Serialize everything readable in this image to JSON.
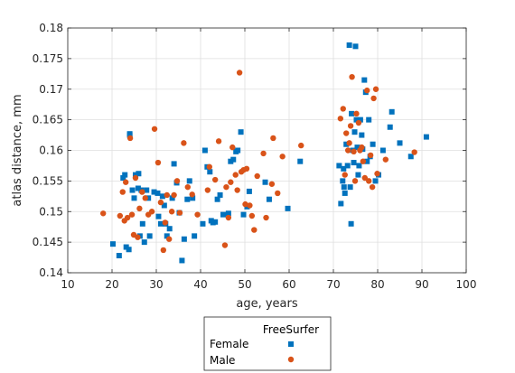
{
  "chart_data": {
    "type": "scatter",
    "xlabel": "age, years",
    "ylabel": "atlas distance, mm",
    "xlim": [
      10,
      100
    ],
    "ylim": [
      0.14,
      0.18
    ],
    "xticks": [
      "10",
      "20",
      "30",
      "40",
      "50",
      "60",
      "70",
      "80",
      "90",
      "100"
    ],
    "yticks": [
      "0.14",
      "0.145",
      "0.15",
      "0.155",
      "0.16",
      "0.165",
      "0.17",
      "0.175",
      "0.18"
    ],
    "grid": true,
    "legend": {
      "title": "FreeSurfer",
      "position": "bottom-center-outside",
      "entries": [
        "Female",
        "Male"
      ]
    },
    "series": [
      {
        "name": "Female",
        "color": "#0072bd",
        "marker": "square",
        "points": [
          [
            20.2,
            0.1447
          ],
          [
            21.6,
            0.1428
          ],
          [
            22.5,
            0.1555
          ],
          [
            22.9,
            0.156
          ],
          [
            23.2,
            0.1442
          ],
          [
            23.8,
            0.1438
          ],
          [
            24.0,
            0.1627
          ],
          [
            24.0,
            0.1625
          ],
          [
            24.6,
            0.1535
          ],
          [
            25.0,
            0.1522
          ],
          [
            25.3,
            0.156
          ],
          [
            25.9,
            0.1538
          ],
          [
            26.0,
            0.1562
          ],
          [
            26.3,
            0.146
          ],
          [
            26.6,
            0.1535
          ],
          [
            26.9,
            0.148
          ],
          [
            27.3,
            0.145
          ],
          [
            27.8,
            0.1535
          ],
          [
            28.2,
            0.1522
          ],
          [
            28.5,
            0.146
          ],
          [
            29.5,
            0.1532
          ],
          [
            30.3,
            0.153
          ],
          [
            30.5,
            0.1492
          ],
          [
            31.0,
            0.148
          ],
          [
            31.4,
            0.1525
          ],
          [
            31.8,
            0.151
          ],
          [
            32.1,
            0.148
          ],
          [
            32.4,
            0.146
          ],
          [
            33.0,
            0.1472
          ],
          [
            33.6,
            0.1522
          ],
          [
            34.0,
            0.1578
          ],
          [
            34.6,
            0.1547
          ],
          [
            35.2,
            0.1498
          ],
          [
            35.8,
            0.142
          ],
          [
            36.3,
            0.1455
          ],
          [
            37.0,
            0.152
          ],
          [
            37.5,
            0.155
          ],
          [
            38.2,
            0.1522
          ],
          [
            38.6,
            0.146
          ],
          [
            40.5,
            0.148
          ],
          [
            41.0,
            0.16
          ],
          [
            41.5,
            0.1573
          ],
          [
            42.1,
            0.1565
          ],
          [
            42.4,
            0.1485
          ],
          [
            42.8,
            0.1482
          ],
          [
            43.3,
            0.1483
          ],
          [
            43.8,
            0.152
          ],
          [
            44.4,
            0.1527
          ],
          [
            45.1,
            0.1495
          ],
          [
            46.3,
            0.1497
          ],
          [
            46.8,
            0.1582
          ],
          [
            47.4,
            0.1585
          ],
          [
            48.0,
            0.1598
          ],
          [
            48.4,
            0.16
          ],
          [
            49.1,
            0.163
          ],
          [
            49.7,
            0.1495
          ],
          [
            50.5,
            0.1508
          ],
          [
            51.0,
            0.1533
          ],
          [
            54.6,
            0.1548
          ],
          [
            55.5,
            0.152
          ],
          [
            59.7,
            0.1505
          ],
          [
            62.5,
            0.1582
          ],
          [
            71.3,
            0.1575
          ],
          [
            71.7,
            0.1513
          ],
          [
            72.1,
            0.155
          ],
          [
            72.3,
            0.157
          ],
          [
            72.4,
            0.154
          ],
          [
            72.6,
            0.153
          ],
          [
            72.9,
            0.161
          ],
          [
            73.2,
            0.1575
          ],
          [
            73.6,
            0.1772
          ],
          [
            73.8,
            0.154
          ],
          [
            74.0,
            0.148
          ],
          [
            74.1,
            0.166
          ],
          [
            74.4,
            0.16
          ],
          [
            74.6,
            0.158
          ],
          [
            74.8,
            0.163
          ],
          [
            75.0,
            0.177
          ],
          [
            75.2,
            0.165
          ],
          [
            75.4,
            0.1605
          ],
          [
            75.6,
            0.156
          ],
          [
            75.8,
            0.1575
          ],
          [
            76.1,
            0.165
          ],
          [
            76.4,
            0.1625
          ],
          [
            76.6,
            0.1602
          ],
          [
            77.0,
            0.1715
          ],
          [
            77.3,
            0.1695
          ],
          [
            77.6,
            0.1582
          ],
          [
            78.0,
            0.165
          ],
          [
            78.3,
            0.159
          ],
          [
            78.9,
            0.161
          ],
          [
            79.5,
            0.155
          ],
          [
            80.2,
            0.156
          ],
          [
            81.2,
            0.16
          ],
          [
            82.8,
            0.1638
          ],
          [
            83.2,
            0.1663
          ],
          [
            85.0,
            0.1612
          ],
          [
            87.5,
            0.159
          ],
          [
            91.0,
            0.1622
          ]
        ]
      },
      {
        "name": "Male",
        "color": "#d95319",
        "marker": "circle",
        "points": [
          [
            18.0,
            0.1497
          ],
          [
            21.8,
            0.1493
          ],
          [
            22.4,
            0.1532
          ],
          [
            22.8,
            0.1485
          ],
          [
            23.1,
            0.1548
          ],
          [
            23.5,
            0.149
          ],
          [
            24.1,
            0.162
          ],
          [
            24.5,
            0.1495
          ],
          [
            24.9,
            0.1462
          ],
          [
            25.3,
            0.1555
          ],
          [
            25.8,
            0.1458
          ],
          [
            26.2,
            0.1505
          ],
          [
            26.8,
            0.1532
          ],
          [
            27.5,
            0.1522
          ],
          [
            28.2,
            0.1495
          ],
          [
            29.0,
            0.15
          ],
          [
            29.6,
            0.1635
          ],
          [
            30.4,
            0.158
          ],
          [
            31.0,
            0.1515
          ],
          [
            31.6,
            0.1437
          ],
          [
            32.0,
            0.1482
          ],
          [
            32.4,
            0.1527
          ],
          [
            32.9,
            0.1455
          ],
          [
            33.5,
            0.15
          ],
          [
            34.0,
            0.1527
          ],
          [
            34.7,
            0.155
          ],
          [
            35.3,
            0.1498
          ],
          [
            36.2,
            0.1612
          ],
          [
            37.1,
            0.154
          ],
          [
            38.1,
            0.1528
          ],
          [
            39.3,
            0.1495
          ],
          [
            41.6,
            0.1535
          ],
          [
            42.0,
            0.1573
          ],
          [
            43.3,
            0.1552
          ],
          [
            44.1,
            0.1615
          ],
          [
            45.5,
            0.1445
          ],
          [
            45.8,
            0.154
          ],
          [
            46.3,
            0.149
          ],
          [
            46.8,
            0.1548
          ],
          [
            47.2,
            0.1605
          ],
          [
            47.9,
            0.156
          ],
          [
            48.3,
            0.1535
          ],
          [
            48.8,
            0.1727
          ],
          [
            49.2,
            0.1565
          ],
          [
            49.7,
            0.1568
          ],
          [
            50.1,
            0.1512
          ],
          [
            50.4,
            0.157
          ],
          [
            51.1,
            0.151
          ],
          [
            51.6,
            0.1493
          ],
          [
            52.1,
            0.147
          ],
          [
            52.8,
            0.1558
          ],
          [
            54.2,
            0.1595
          ],
          [
            54.8,
            0.149
          ],
          [
            56.1,
            0.1545
          ],
          [
            56.4,
            0.162
          ],
          [
            57.4,
            0.153
          ],
          [
            58.5,
            0.159
          ],
          [
            62.7,
            0.1608
          ],
          [
            71.6,
            0.1652
          ],
          [
            72.2,
            0.1668
          ],
          [
            72.6,
            0.156
          ],
          [
            72.9,
            0.1628
          ],
          [
            73.3,
            0.16
          ],
          [
            73.6,
            0.1612
          ],
          [
            73.9,
            0.164
          ],
          [
            74.2,
            0.172
          ],
          [
            74.6,
            0.1598
          ],
          [
            74.9,
            0.155
          ],
          [
            75.2,
            0.166
          ],
          [
            75.7,
            0.1645
          ],
          [
            76.0,
            0.16
          ],
          [
            76.4,
            0.1605
          ],
          [
            76.7,
            0.1582
          ],
          [
            77.1,
            0.1555
          ],
          [
            77.6,
            0.1698
          ],
          [
            78.0,
            0.155
          ],
          [
            78.4,
            0.1592
          ],
          [
            78.8,
            0.154
          ],
          [
            79.1,
            0.1685
          ],
          [
            79.6,
            0.17
          ],
          [
            79.9,
            0.1562
          ],
          [
            81.8,
            0.1585
          ],
          [
            88.3,
            0.1597
          ]
        ]
      }
    ]
  }
}
